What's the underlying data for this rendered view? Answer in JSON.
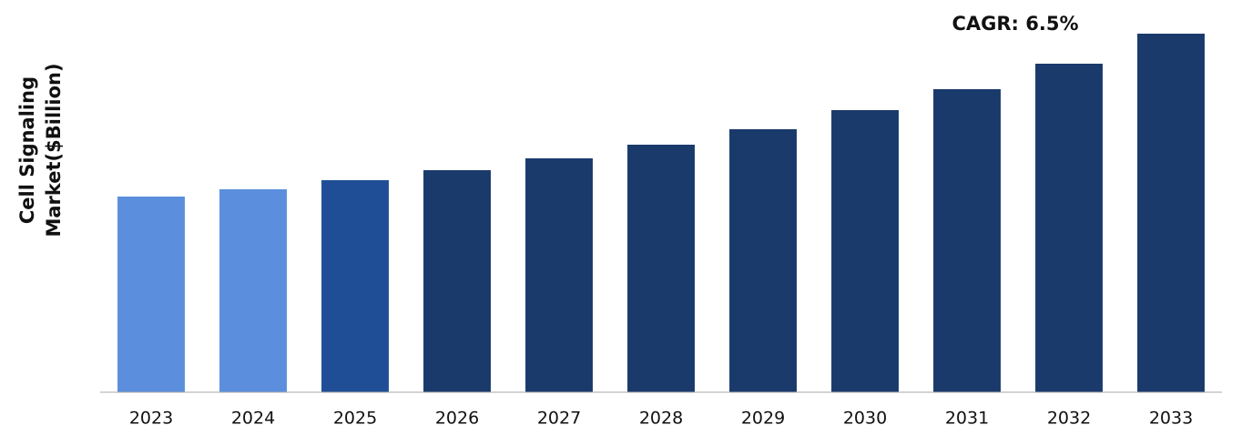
{
  "chart_data": {
    "type": "bar",
    "y_label": [
      "Cell Signaling",
      "Market($Billion)"
    ],
    "annotation": "CAGR: 6.5%",
    "categories": [
      "2023",
      "2024",
      "2025",
      "2026",
      "2027",
      "2028",
      "2029",
      "2030",
      "2031",
      "2032",
      "2033"
    ],
    "values": [
      2.15,
      2.23,
      2.33,
      2.44,
      2.57,
      2.72,
      2.89,
      3.1,
      3.33,
      3.61,
      3.94
    ],
    "colors": [
      "#5b8fdd",
      "#5b8fdd",
      "#1f4e96",
      "#1a3a6c",
      "#1a3a6c",
      "#1a3a6c",
      "#1a3a6c",
      "#1a3a6c",
      "#1a3a6c",
      "#1a3a6c",
      "#1a3a6c"
    ],
    "ylim": [
      0,
      4
    ]
  }
}
